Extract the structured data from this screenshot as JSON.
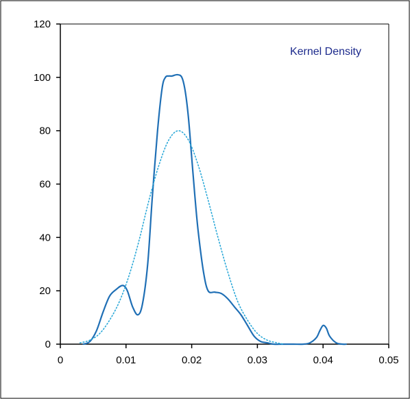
{
  "chart_data": {
    "type": "line",
    "title": "",
    "xlabel": "",
    "ylabel": "",
    "xlim": [
      0,
      0.05
    ],
    "ylim": [
      0,
      120
    ],
    "x_ticks": [
      0,
      0.01,
      0.02,
      0.03,
      0.04,
      0.05
    ],
    "x_tick_labels": [
      "0",
      "0.01",
      "0.02",
      "0.03",
      "0.04",
      "0.05"
    ],
    "y_ticks": [
      0,
      20,
      40,
      60,
      80,
      100,
      120
    ],
    "y_tick_labels": [
      "0",
      "20",
      "40",
      "60",
      "80",
      "100",
      "120"
    ],
    "grid": false,
    "annotation": "Kernel Density",
    "colors": {
      "kernel": "#1f6fb5",
      "normal": "#2aa8d8",
      "annotation": "#1c2a8c"
    },
    "series": [
      {
        "style": "solid",
        "x": [
          0.0035,
          0.0045,
          0.0055,
          0.0065,
          0.0075,
          0.0085,
          0.0095,
          0.0102,
          0.011,
          0.0118,
          0.0125,
          0.0133,
          0.014,
          0.0148,
          0.0155,
          0.016,
          0.0165,
          0.017,
          0.0178,
          0.0185,
          0.019,
          0.0195,
          0.02,
          0.0205,
          0.021,
          0.0218,
          0.0225,
          0.0235,
          0.0245,
          0.0255,
          0.0265,
          0.0275,
          0.0285,
          0.0295,
          0.0305,
          0.0315,
          0.0325,
          0.034,
          0.0355,
          0.037,
          0.038,
          0.039,
          0.0395,
          0.04,
          0.0405,
          0.041,
          0.042,
          0.043,
          0.0435
        ],
        "y": [
          0,
          1,
          5,
          12,
          18,
          20.5,
          22,
          20,
          14,
          11,
          15,
          30,
          55,
          80,
          96,
          100,
          100.5,
          100.5,
          101,
          100,
          95,
          85,
          70,
          55,
          42,
          27,
          20,
          19.5,
          19,
          17,
          14,
          11,
          7,
          3,
          1,
          0.5,
          0,
          0,
          0,
          0,
          0.5,
          2.5,
          5,
          7,
          6,
          3,
          0.5,
          0,
          0
        ]
      },
      {
        "style": "dotted",
        "x": [
          0.003,
          0.0045,
          0.006,
          0.0075,
          0.009,
          0.0105,
          0.012,
          0.0135,
          0.015,
          0.0165,
          0.018,
          0.0195,
          0.021,
          0.0225,
          0.024,
          0.0255,
          0.027,
          0.0285,
          0.03,
          0.0315,
          0.033,
          0.034
        ],
        "y": [
          0.5,
          1.5,
          4,
          9,
          16,
          26,
          39,
          54,
          67,
          76.5,
          80,
          76.5,
          67,
          54,
          40,
          27,
          16,
          9,
          4,
          1.5,
          0.5,
          0
        ]
      }
    ]
  }
}
